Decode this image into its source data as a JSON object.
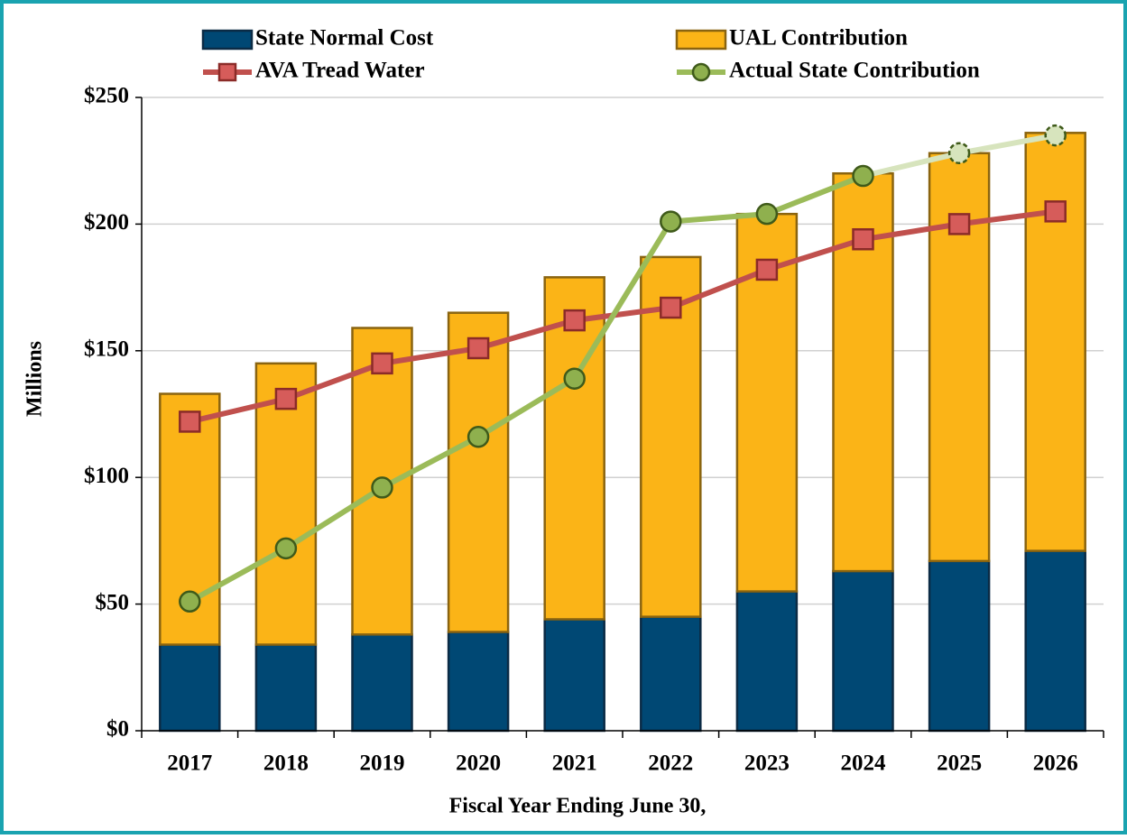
{
  "chart_data": {
    "type": "bar_line",
    "x_label": "Fiscal Year Ending  June 30,",
    "y_label": "Millions",
    "categories": [
      "2017",
      "2018",
      "2019",
      "2020",
      "2021",
      "2022",
      "2023",
      "2024",
      "2025",
      "2026"
    ],
    "series": [
      {
        "name": "State Normal Cost",
        "type": "bar",
        "color": "#004874",
        "edge": "#0b2b45",
        "values": [
          34,
          34,
          38,
          39,
          44,
          45,
          55,
          63,
          67,
          71
        ]
      },
      {
        "name": "UAL Contribution",
        "type": "bar",
        "color": "#fbb417",
        "edge": "#8a6410",
        "values": [
          99,
          111,
          121,
          126,
          135,
          142,
          149,
          157,
          161,
          165
        ]
      },
      {
        "name": "AVA Tread Water",
        "type": "line",
        "marker": "square",
        "color": "#c0504d",
        "marker_color": "#d65c5a",
        "edge": "#8b2b28",
        "values": [
          122,
          131,
          145,
          151,
          162,
          167,
          182,
          194,
          200,
          205
        ]
      },
      {
        "name": "Actual State Contribution",
        "type": "line",
        "marker": "circle",
        "color": "#9bbb59",
        "marker_color": "#8fb04e",
        "edge": "#3f5a1a",
        "projected_color": "#d7e4bd",
        "projected_start_index": 7,
        "values": [
          51,
          72,
          96,
          116,
          139,
          201,
          204,
          219,
          228,
          235
        ]
      }
    ],
    "ylim": [
      0,
      250
    ],
    "yticks": [
      {
        "value": 0,
        "label": "$0"
      },
      {
        "value": 50,
        "label": "$50"
      },
      {
        "value": 100,
        "label": "$100"
      },
      {
        "value": 150,
        "label": "$150"
      },
      {
        "value": 200,
        "label": "$200"
      },
      {
        "value": 250,
        "label": "$250"
      }
    ],
    "grid": true,
    "legend": "top"
  }
}
